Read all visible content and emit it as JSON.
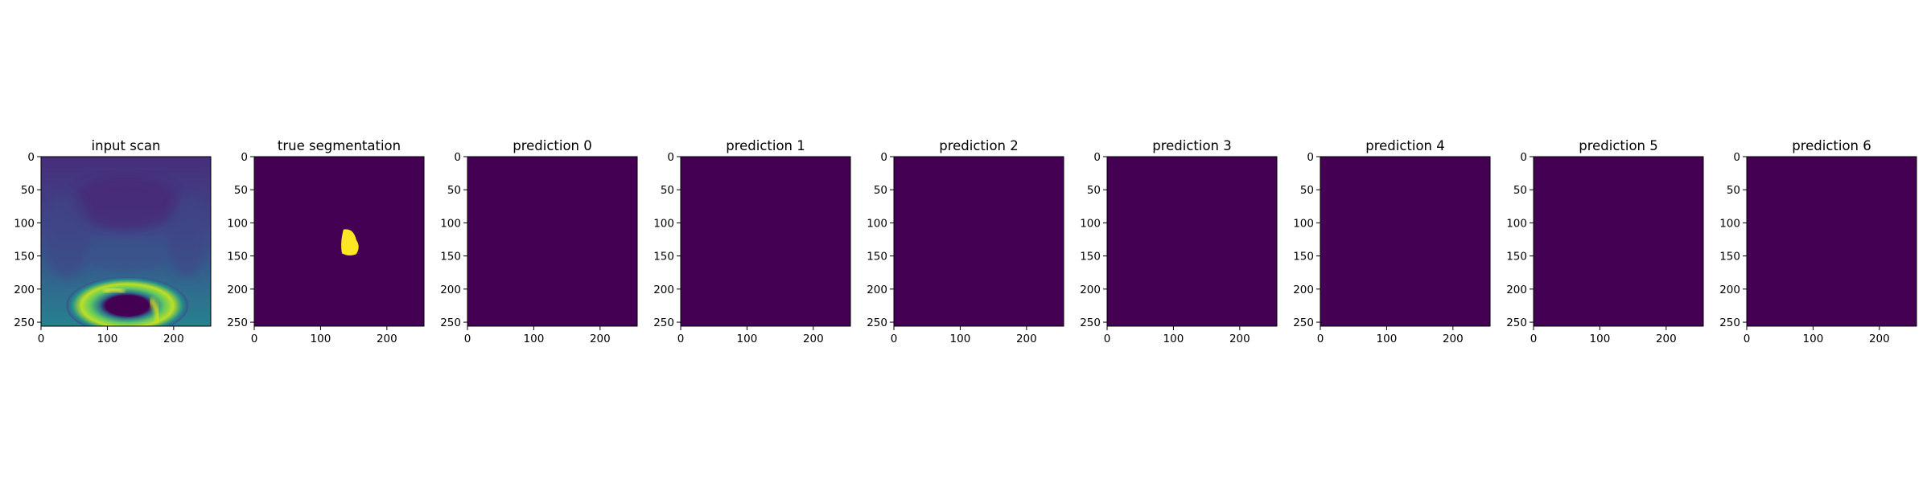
{
  "chart_data": [
    {
      "type": "heatmap",
      "title": "input scan",
      "xticks": [
        "0",
        "100",
        "200"
      ],
      "yticks": [
        "0",
        "50",
        "100",
        "150",
        "200",
        "250"
      ],
      "xlim": [
        0,
        256
      ],
      "ylim": [
        256,
        0
      ],
      "image": "mri-scan",
      "colormap": "viridis"
    },
    {
      "type": "heatmap",
      "title": "true segmentation",
      "xticks": [
        "0",
        "100",
        "200"
      ],
      "yticks": [
        "0",
        "50",
        "100",
        "150",
        "200",
        "250"
      ],
      "xlim": [
        0,
        256
      ],
      "ylim": [
        256,
        0
      ],
      "image": "segmentation-mask",
      "colormap": "viridis",
      "mask_region": {
        "x": [
          130,
          160
        ],
        "y": [
          110,
          150
        ]
      }
    },
    {
      "type": "heatmap",
      "title": "prediction 0",
      "xticks": [
        "0",
        "100",
        "200"
      ],
      "yticks": [
        "0",
        "50",
        "100",
        "150",
        "200",
        "250"
      ],
      "xlim": [
        0,
        256
      ],
      "ylim": [
        256,
        0
      ],
      "image": "empty",
      "colormap": "viridis"
    },
    {
      "type": "heatmap",
      "title": "prediction 1",
      "xticks": [
        "0",
        "100",
        "200"
      ],
      "yticks": [
        "0",
        "50",
        "100",
        "150",
        "200",
        "250"
      ],
      "xlim": [
        0,
        256
      ],
      "ylim": [
        256,
        0
      ],
      "image": "empty",
      "colormap": "viridis"
    },
    {
      "type": "heatmap",
      "title": "prediction 2",
      "xticks": [
        "0",
        "100",
        "200"
      ],
      "yticks": [
        "0",
        "50",
        "100",
        "150",
        "200",
        "250"
      ],
      "xlim": [
        0,
        256
      ],
      "ylim": [
        256,
        0
      ],
      "image": "empty",
      "colormap": "viridis"
    },
    {
      "type": "heatmap",
      "title": "prediction 3",
      "xticks": [
        "0",
        "100",
        "200"
      ],
      "yticks": [
        "0",
        "50",
        "100",
        "150",
        "200",
        "250"
      ],
      "xlim": [
        0,
        256
      ],
      "ylim": [
        256,
        0
      ],
      "image": "empty",
      "colormap": "viridis"
    },
    {
      "type": "heatmap",
      "title": "prediction 4",
      "xticks": [
        "0",
        "100",
        "200"
      ],
      "yticks": [
        "0",
        "50",
        "100",
        "150",
        "200",
        "250"
      ],
      "xlim": [
        0,
        256
      ],
      "ylim": [
        256,
        0
      ],
      "image": "empty",
      "colormap": "viridis"
    },
    {
      "type": "heatmap",
      "title": "prediction 5",
      "xticks": [
        "0",
        "100",
        "200"
      ],
      "yticks": [
        "0",
        "50",
        "100",
        "150",
        "200",
        "250"
      ],
      "xlim": [
        0,
        256
      ],
      "ylim": [
        256,
        0
      ],
      "image": "empty",
      "colormap": "viridis"
    },
    {
      "type": "heatmap",
      "title": "prediction 6",
      "xticks": [
        "0",
        "100",
        "200"
      ],
      "yticks": [
        "0",
        "50",
        "100",
        "150",
        "200",
        "250"
      ],
      "xlim": [
        0,
        256
      ],
      "ylim": [
        256,
        0
      ],
      "image": "empty",
      "colormap": "viridis"
    }
  ],
  "colors": {
    "viridis_min": "#440154",
    "viridis_max": "#fde725",
    "axis": "#000000",
    "background": "#ffffff"
  }
}
